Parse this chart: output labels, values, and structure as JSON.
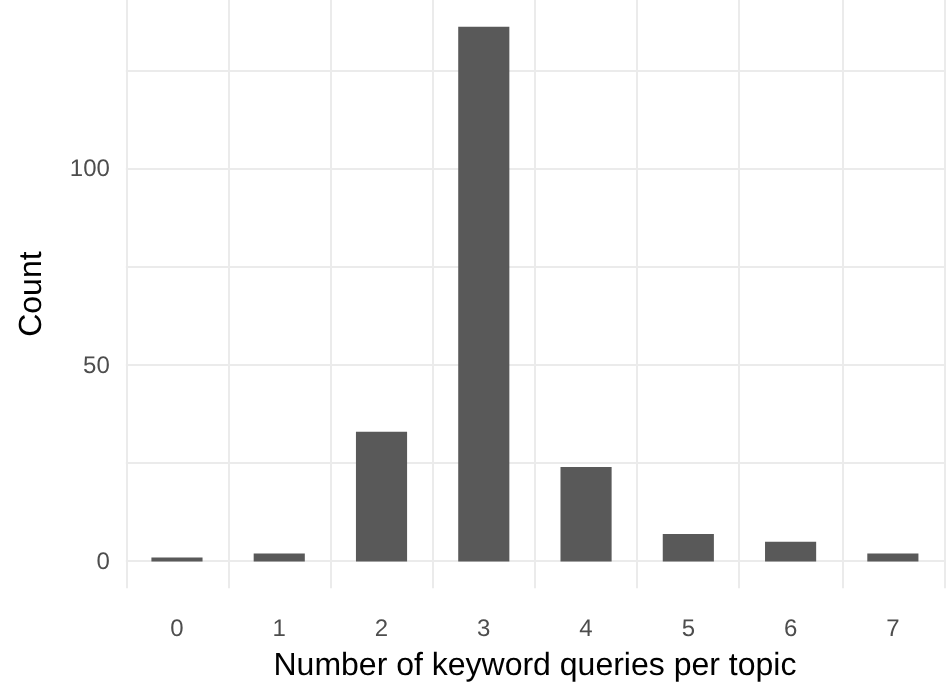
{
  "chart_data": {
    "type": "bar",
    "xlabel": "Number of keyword queries per topic",
    "ylabel": "Count",
    "categories": [
      "0",
      "1",
      "2",
      "3",
      "4",
      "5",
      "6",
      "7"
    ],
    "values": [
      1,
      2,
      33,
      136,
      24,
      7,
      5,
      2
    ],
    "color": "#595959",
    "ylim": [
      -6.8,
      142.8
    ],
    "yticks": [
      0,
      {
        "value": 25,
        "label": null
      },
      50,
      {
        "value": 75,
        "label": null
      },
      100,
      {
        "value": 125,
        "label": null
      }
    ],
    "grid": true
  }
}
